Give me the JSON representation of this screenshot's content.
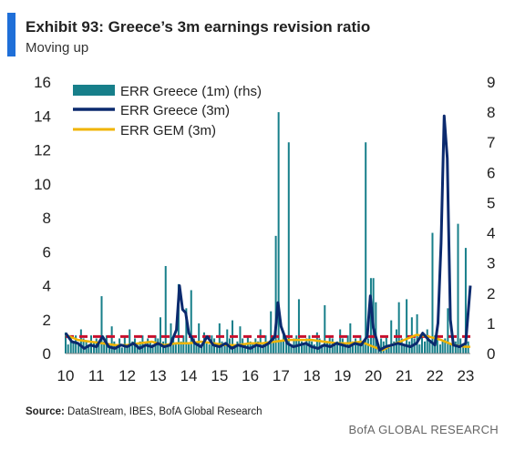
{
  "header": {
    "title": "Exhibit 93: Greece’s 3m earnings revision ratio",
    "subtitle": "Moving up"
  },
  "footer": {
    "source_label": "Source:",
    "source_text": "DataStream, IBES, BofA Global Research",
    "brand": "BofA GLOBAL RESEARCH"
  },
  "colors": {
    "bars": "#177f8a",
    "greece_line": "#0b2a6e",
    "gem_line": "#f0b400",
    "reference_line": "#c8102e",
    "accent": "#1f6fd8"
  },
  "chart_data": {
    "type": "bar+line",
    "title": "",
    "xlabel": "",
    "ylabel": "",
    "x_ticks": [
      "10",
      "11",
      "12",
      "13",
      "14",
      "15",
      "16",
      "17",
      "18",
      "19",
      "20",
      "21",
      "22",
      "23"
    ],
    "x_range": [
      2010,
      2023.15
    ],
    "left_axis": {
      "ticks": [
        "0",
        "2",
        "4",
        "6",
        "8",
        "10",
        "12",
        "14",
        "16"
      ],
      "ylim": [
        0,
        16
      ]
    },
    "right_axis": {
      "ticks": [
        "0",
        "1",
        "2",
        "3",
        "4",
        "5",
        "6",
        "7",
        "8",
        "9"
      ],
      "ylim": [
        0,
        9
      ]
    },
    "legend": {
      "placement": "top-left",
      "entries": [
        "ERR Greece (1m) (rhs)",
        "ERR Greece (3m)",
        "ERR GEM (3m)"
      ]
    },
    "reference_line": {
      "axis": "left",
      "value": 1.0,
      "style": "dashed"
    },
    "series": [
      {
        "name": "ERR Greece (1m) (rhs)",
        "kind": "bar",
        "axis": "right",
        "x": [
          2010.0,
          2010.08,
          2010.17,
          2010.25,
          2010.33,
          2010.42,
          2010.5,
          2010.58,
          2010.67,
          2010.75,
          2010.83,
          2010.92,
          2011.0,
          2011.08,
          2011.17,
          2011.25,
          2011.33,
          2011.42,
          2011.5,
          2011.58,
          2011.67,
          2011.75,
          2011.83,
          2011.92,
          2012.0,
          2012.08,
          2012.17,
          2012.25,
          2012.33,
          2012.42,
          2012.5,
          2012.58,
          2012.67,
          2012.75,
          2012.83,
          2012.92,
          2013.0,
          2013.08,
          2013.17,
          2013.25,
          2013.33,
          2013.42,
          2013.5,
          2013.58,
          2013.67,
          2013.75,
          2013.83,
          2013.92,
          2014.0,
          2014.08,
          2014.17,
          2014.25,
          2014.33,
          2014.42,
          2014.5,
          2014.58,
          2014.67,
          2014.75,
          2014.83,
          2014.92,
          2015.0,
          2015.08,
          2015.17,
          2015.25,
          2015.33,
          2015.42,
          2015.5,
          2015.58,
          2015.67,
          2015.75,
          2015.83,
          2015.92,
          2016.0,
          2016.08,
          2016.17,
          2016.25,
          2016.33,
          2016.42,
          2016.5,
          2016.58,
          2016.67,
          2016.75,
          2016.83,
          2016.92,
          2017.0,
          2017.08,
          2017.17,
          2017.25,
          2017.33,
          2017.42,
          2017.5,
          2017.58,
          2017.67,
          2017.75,
          2017.83,
          2017.92,
          2018.0,
          2018.08,
          2018.17,
          2018.25,
          2018.33,
          2018.42,
          2018.5,
          2018.58,
          2018.67,
          2018.75,
          2018.83,
          2018.92,
          2019.0,
          2019.08,
          2019.17,
          2019.25,
          2019.33,
          2019.42,
          2019.5,
          2019.58,
          2019.67,
          2019.75,
          2019.83,
          2019.92,
          2020.0,
          2020.08,
          2020.17,
          2020.25,
          2020.33,
          2020.42,
          2020.5,
          2020.58,
          2020.67,
          2020.75,
          2020.83,
          2020.92,
          2021.0,
          2021.08,
          2021.17,
          2021.25,
          2021.33,
          2021.42,
          2021.5,
          2021.58,
          2021.67,
          2021.75,
          2021.83,
          2021.92,
          2022.0,
          2022.08,
          2022.17,
          2022.25,
          2022.33,
          2022.42,
          2022.5,
          2022.58,
          2022.67,
          2022.75,
          2022.83,
          2022.92,
          2023.0,
          2023.08
        ],
        "values": [
          0.7,
          0.3,
          0.5,
          0.4,
          0.6,
          0.3,
          0.8,
          0.5,
          0.4,
          0.3,
          0.6,
          0.4,
          0.5,
          0.3,
          1.9,
          0.4,
          0.6,
          0.3,
          0.9,
          0.4,
          0.3,
          0.5,
          0.2,
          0.6,
          0.3,
          0.8,
          0.4,
          0.5,
          0.3,
          0.4,
          0.6,
          0.3,
          0.5,
          0.4,
          0.3,
          0.6,
          0.5,
          1.2,
          0.4,
          2.9,
          0.3,
          1.0,
          0.5,
          0.3,
          2.3,
          0.4,
          0.6,
          1.5,
          0.3,
          2.1,
          0.5,
          0.4,
          1.0,
          0.3,
          0.7,
          0.4,
          0.3,
          0.6,
          0.5,
          0.3,
          1.0,
          0.4,
          0.3,
          0.8,
          0.5,
          1.1,
          0.3,
          0.4,
          0.9,
          0.5,
          0.3,
          0.6,
          0.4,
          0.3,
          0.5,
          0.4,
          0.8,
          0.3,
          0.6,
          0.4,
          1.4,
          0.5,
          3.9,
          8.0,
          0.4,
          0.6,
          0.5,
          7.0,
          0.3,
          0.5,
          0.6,
          1.8,
          0.4,
          0.3,
          0.5,
          0.6,
          0.4,
          0.3,
          0.7,
          0.5,
          0.3,
          1.6,
          0.4,
          0.6,
          0.5,
          0.3,
          0.4,
          0.8,
          0.5,
          0.3,
          0.6,
          1.0,
          0.4,
          0.5,
          0.3,
          0.6,
          0.4,
          7.0,
          0.5,
          2.5,
          2.5,
          1.7,
          0.3,
          0.5,
          0.4,
          0.6,
          0.3,
          1.1,
          0.4,
          0.8,
          1.7,
          0.5,
          0.3,
          1.8,
          0.4,
          1.2,
          0.5,
          1.3,
          0.3,
          0.6,
          0.4,
          0.8,
          0.4,
          4.0,
          0.6,
          0.5,
          0.3,
          0.4,
          0.5,
          1.5,
          0.3,
          0.6,
          0.4,
          4.3,
          0.5,
          0.3,
          3.5,
          0.4
        ]
      },
      {
        "name": "ERR Greece (3m)",
        "kind": "line",
        "axis": "left",
        "x": [
          2010.0,
          2010.2,
          2010.4,
          2010.6,
          2010.8,
          2011.0,
          2011.2,
          2011.4,
          2011.6,
          2011.8,
          2012.0,
          2012.2,
          2012.4,
          2012.6,
          2012.8,
          2013.0,
          2013.2,
          2013.4,
          2013.6,
          2013.7,
          2013.8,
          2013.9,
          2014.0,
          2014.2,
          2014.4,
          2014.6,
          2014.8,
          2015.0,
          2015.2,
          2015.4,
          2015.6,
          2015.8,
          2016.0,
          2016.2,
          2016.4,
          2016.6,
          2016.8,
          2016.9,
          2017.0,
          2017.2,
          2017.4,
          2017.6,
          2017.8,
          2018.0,
          2018.2,
          2018.4,
          2018.6,
          2018.8,
          2019.0,
          2019.2,
          2019.4,
          2019.6,
          2019.8,
          2019.9,
          2020.0,
          2020.2,
          2020.4,
          2020.6,
          2020.8,
          2021.0,
          2021.2,
          2021.4,
          2021.6,
          2021.8,
          2022.0,
          2022.1,
          2022.2,
          2022.3,
          2022.4,
          2022.5,
          2022.6,
          2022.8,
          2023.0,
          2023.15
        ],
        "values": [
          1.2,
          0.7,
          0.6,
          0.3,
          0.5,
          0.4,
          1.0,
          0.4,
          0.3,
          0.5,
          0.4,
          0.6,
          0.3,
          0.5,
          0.4,
          0.6,
          0.4,
          0.5,
          1.4,
          4.0,
          2.6,
          2.4,
          1.2,
          0.6,
          0.4,
          1.0,
          0.5,
          0.4,
          0.6,
          0.3,
          0.5,
          0.4,
          0.3,
          0.5,
          0.4,
          0.6,
          1.0,
          3.0,
          1.6,
          0.6,
          0.4,
          0.5,
          0.6,
          0.4,
          0.3,
          0.5,
          0.4,
          0.6,
          0.5,
          0.4,
          0.6,
          0.5,
          1.0,
          3.4,
          1.5,
          0.2,
          0.4,
          0.5,
          0.6,
          0.5,
          0.4,
          0.6,
          1.2,
          0.8,
          0.5,
          1.8,
          6.5,
          14.0,
          11.5,
          2.0,
          0.5,
          0.4,
          0.6,
          4.0
        ]
      },
      {
        "name": "ERR GEM (3m)",
        "kind": "line",
        "axis": "left",
        "x": [
          2010.0,
          2010.4,
          2010.8,
          2011.2,
          2011.6,
          2012.0,
          2012.4,
          2012.8,
          2013.2,
          2013.6,
          2014.0,
          2014.4,
          2014.8,
          2015.2,
          2015.6,
          2016.0,
          2016.4,
          2016.8,
          2017.2,
          2017.6,
          2018.0,
          2018.4,
          2018.8,
          2019.2,
          2019.6,
          2020.0,
          2020.3,
          2020.6,
          2021.0,
          2021.4,
          2021.8,
          2022.2,
          2022.6,
          2023.0,
          2023.15
        ],
        "values": [
          1.1,
          0.8,
          0.7,
          0.6,
          0.5,
          0.5,
          0.6,
          0.7,
          0.5,
          0.6,
          0.6,
          0.7,
          0.6,
          0.5,
          0.5,
          0.6,
          0.6,
          0.7,
          0.8,
          0.8,
          0.8,
          0.7,
          0.6,
          0.6,
          0.7,
          0.4,
          0.2,
          0.5,
          0.8,
          1.1,
          1.0,
          0.8,
          0.5,
          0.4,
          0.4
        ]
      }
    ]
  }
}
